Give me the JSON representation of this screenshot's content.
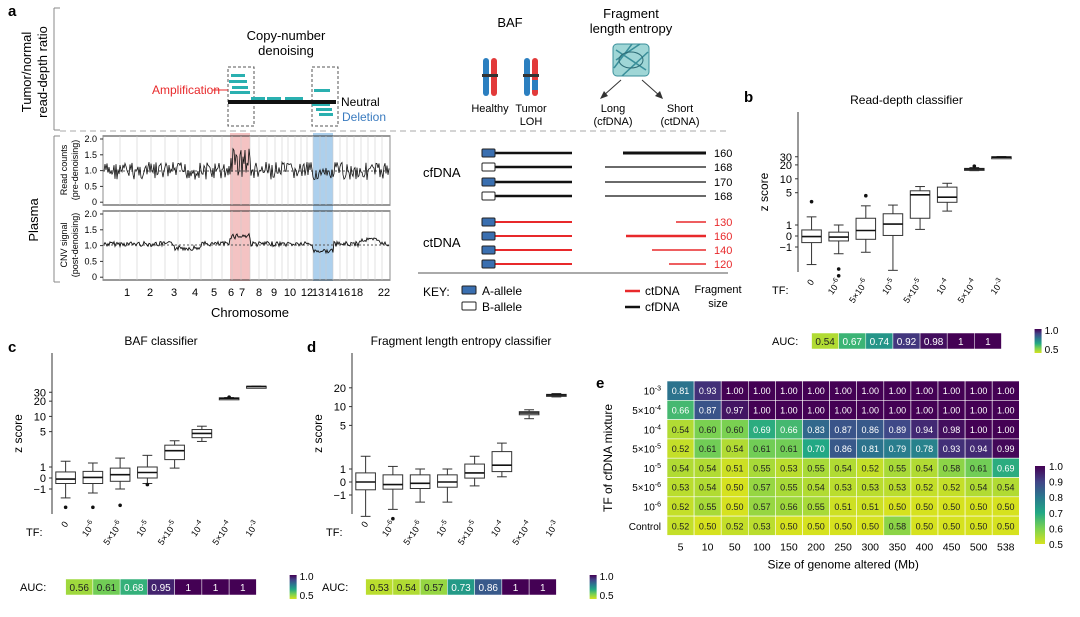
{
  "panel_a": {
    "label": "a",
    "ylabel_top_1": "Tumor/normal",
    "ylabel_top_2": "read-depth ratio",
    "ylabel_plasma": "Plasma",
    "cn_title_1": "Copy-number",
    "cn_title_2": "denoising",
    "amplification": "Amplification",
    "neutral": "Neutral",
    "deletion": "Deletion",
    "track1_ylabel_1": "Read counts",
    "track1_ylabel_2": "(pre-denoising)",
    "track2_ylabel_1": "CNV signal",
    "track2_ylabel_2": "(post-denoising)",
    "track1_ticks": [
      "2.0",
      "1.5",
      "1.0",
      "0.5",
      "0"
    ],
    "track2_ticks": [
      "2.0",
      "1.5",
      "1.0",
      "0.5",
      "0"
    ],
    "chromosome_ticks": [
      "1",
      "2",
      "3",
      "4",
      "5",
      "6",
      "7",
      "8",
      "9",
      "10",
      "12",
      "13",
      "14",
      "16",
      "18",
      "22"
    ],
    "xlabel": "Chromosome",
    "baf_title": "BAF",
    "healthy": "Healthy",
    "tumor_loh_1": "Tumor",
    "tumor_loh_2": "LOH",
    "fle_title_1": "Fragment",
    "fle_title_2": "length entropy",
    "long_1": "Long",
    "long_2": "(cfDNA)",
    "short_1": "Short",
    "short_2": "(ctDNA)",
    "cfdna_label": "cfDNA",
    "ctdna_label": "ctDNA",
    "cfdna_sizes": [
      "160",
      "168",
      "170",
      "168"
    ],
    "ctdna_sizes": [
      "130",
      "160",
      "140",
      "120"
    ],
    "key_label": "KEY:",
    "key_a_allele": "A-allele",
    "key_b_allele": "B-allele",
    "key_ctdna": "ctDNA",
    "key_cfdna": "cfDNA",
    "key_fragment_1": "Fragment",
    "key_fragment_2": "size"
  },
  "colors": {
    "teal": "#2ab0b0",
    "amp_shade": "#f2b8b8",
    "del_shade": "#9fc8ea",
    "red": "#e8292b",
    "blue_allele": "#3a6fb0",
    "amp_text": "#e8292b",
    "del_text": "#3a7bbf"
  },
  "chart_data": [
    {
      "panel": "b",
      "type": "box",
      "title": "Read-depth classifier",
      "ylabel": "z score",
      "xlabel": "TF:",
      "categories": [
        "0",
        "10^-6",
        "5×10^-6",
        "10^-5",
        "5×10^-5",
        "10^-4",
        "5×10^-4",
        "10^-3"
      ],
      "ytick_labels": [
        "30",
        "20",
        "10",
        "5",
        "1",
        "0",
        "−1"
      ],
      "boxes": [
        {
          "q1": -0.6,
          "med": -0.05,
          "q3": 0.55,
          "lo": -2.4,
          "hi": 1.5,
          "outliers": [
            3.2
          ]
        },
        {
          "q1": -0.45,
          "med": -0.1,
          "q3": 0.35,
          "lo": -1.4,
          "hi": 1.0,
          "outliers": [
            -3.0,
            -4.2
          ]
        },
        {
          "q1": -0.3,
          "med": 0.5,
          "q3": 1.4,
          "lo": -1.3,
          "hi": 2.6,
          "outliers": [
            4.3
          ]
        },
        {
          "q1": 0.05,
          "med": 1.05,
          "q3": 1.75,
          "lo": -3.2,
          "hi": 2.7,
          "outliers": []
        },
        {
          "q1": 1.4,
          "med": 4.5,
          "q3": 5.5,
          "lo": 0.6,
          "hi": 6.8,
          "outliers": []
        },
        {
          "q1": 3.1,
          "med": 4.0,
          "q3": 6.6,
          "lo": 2.0,
          "hi": 8.0,
          "outliers": []
        },
        {
          "q1": 15.6,
          "med": 16.2,
          "q3": 16.8,
          "lo": 15.0,
          "hi": 17.5,
          "outliers": [
            18.8
          ]
        },
        {
          "q1": 28.6,
          "med": 29.3,
          "q3": 30.0,
          "lo": 28.2,
          "hi": 30.4,
          "outliers": []
        }
      ],
      "auc_label": "AUC:",
      "auc": [
        "0.54",
        "0.67",
        "0.74",
        "0.92",
        "0.98",
        "1",
        "1"
      ],
      "auc_values": [
        0.54,
        0.67,
        0.74,
        0.92,
        0.98,
        1,
        1
      ],
      "colorbar_ticks": [
        "1.0",
        "0.5"
      ]
    },
    {
      "panel": "c",
      "type": "box",
      "title": "BAF classifier",
      "ylabel": "z score",
      "xlabel": "TF:",
      "categories": [
        "0",
        "10^-6",
        "5×10^-6",
        "10^-5",
        "5×10^-5",
        "10^-4",
        "5×10^-4",
        "10^-3"
      ],
      "ytick_labels": [
        "30",
        "20",
        "10",
        "5",
        "1",
        "0",
        "−1"
      ],
      "boxes": [
        {
          "q1": -0.5,
          "med": -0.1,
          "q3": 0.55,
          "lo": -1.5,
          "hi": 1.3,
          "outliers": [
            -2.3
          ]
        },
        {
          "q1": -0.5,
          "med": 0.05,
          "q3": 0.6,
          "lo": -1.2,
          "hi": 1.2,
          "outliers": [
            -2.3
          ]
        },
        {
          "q1": -0.3,
          "med": 0.3,
          "q3": 0.9,
          "lo": -1.0,
          "hi": 1.5,
          "outliers": [
            -2.1
          ]
        },
        {
          "q1": 0.0,
          "med": 0.5,
          "q3": 1.0,
          "lo": -0.5,
          "hi": 1.7,
          "outliers": [
            -0.6
          ]
        },
        {
          "q1": 1.4,
          "med": 2.1,
          "q3": 2.7,
          "lo": 0.9,
          "hi": 3.3,
          "outliers": []
        },
        {
          "q1": 3.8,
          "med": 4.6,
          "q3": 5.5,
          "lo": 3.2,
          "hi": 6.4,
          "outliers": []
        },
        {
          "q1": 22.3,
          "med": 22.8,
          "q3": 23.3,
          "lo": 22.0,
          "hi": 23.6,
          "outliers": [
            24.0
          ]
        },
        {
          "q1": 38.6,
          "med": 39.0,
          "q3": 39.4,
          "lo": 38.4,
          "hi": 39.6,
          "outliers": []
        }
      ],
      "auc_label": "AUC:",
      "auc": [
        "0.56",
        "0.61",
        "0.68",
        "0.95",
        "1",
        "1",
        "1"
      ],
      "auc_values": [
        0.56,
        0.61,
        0.68,
        0.95,
        1,
        1,
        1
      ],
      "colorbar_ticks": [
        "1.0",
        "0.5"
      ]
    },
    {
      "panel": "d",
      "type": "box",
      "title": "Fragment length entropy classifier",
      "ylabel": "z score",
      "xlabel": "TF:",
      "categories": [
        "0",
        "10^-6",
        "5×10^-6",
        "10^-5",
        "5×10^-5",
        "10^-4",
        "5×10^-4",
        "10^-3"
      ],
      "ytick_labels": [
        "20",
        "10",
        "5",
        "1",
        "0",
        "−1"
      ],
      "boxes": [
        {
          "q1": -0.6,
          "med": 0.0,
          "q3": 0.7,
          "lo": -2.2,
          "hi": 1.6,
          "outliers": []
        },
        {
          "q1": -0.55,
          "med": -0.2,
          "q3": 0.55,
          "lo": -1.7,
          "hi": 1.1,
          "outliers": [
            -2.4
          ]
        },
        {
          "q1": -0.5,
          "med": -0.1,
          "q3": 0.55,
          "lo": -1.3,
          "hi": 1.0,
          "outliers": []
        },
        {
          "q1": -0.4,
          "med": 0.0,
          "q3": 0.55,
          "lo": -1.3,
          "hi": 1.0,
          "outliers": []
        },
        {
          "q1": 0.3,
          "med": 0.7,
          "q3": 1.2,
          "lo": -0.3,
          "hi": 1.6,
          "outliers": []
        },
        {
          "q1": 0.8,
          "med": 1.15,
          "q3": 1.9,
          "lo": 0.4,
          "hi": 2.6,
          "outliers": []
        },
        {
          "q1": 7.4,
          "med": 7.9,
          "q3": 8.3,
          "lo": 6.4,
          "hi": 8.9,
          "outliers": []
        },
        {
          "q1": 14.9,
          "med": 15.3,
          "q3": 15.7,
          "lo": 14.3,
          "hi": 16.2,
          "outliers": []
        }
      ],
      "auc_label": "AUC:",
      "auc": [
        "0.53",
        "0.54",
        "0.57",
        "0.73",
        "0.86",
        "1",
        "1"
      ],
      "auc_values": [
        0.53,
        0.54,
        0.57,
        0.73,
        0.86,
        1,
        1
      ],
      "colorbar_ticks": [
        "1.0",
        "0.5"
      ]
    },
    {
      "panel": "e",
      "type": "heatmap",
      "xlabel": "Size of genome altered (Mb)",
      "ylabel": "TF of cfDNA mixture",
      "x": [
        "5",
        "10",
        "50",
        "100",
        "150",
        "200",
        "250",
        "300",
        "350",
        "400",
        "450",
        "500",
        "538"
      ],
      "y": [
        "10^-3",
        "5×10^-4",
        "10^-4",
        "5×10^-5",
        "10^-5",
        "5×10^-6",
        "10^-6",
        "Control"
      ],
      "values": [
        [
          0.81,
          0.93,
          1.0,
          1.0,
          1.0,
          1.0,
          1.0,
          1.0,
          1.0,
          1.0,
          1.0,
          1.0,
          1.0
        ],
        [
          0.66,
          0.87,
          0.97,
          1.0,
          1.0,
          1.0,
          1.0,
          1.0,
          1.0,
          1.0,
          1.0,
          1.0,
          1.0
        ],
        [
          0.54,
          0.6,
          0.6,
          0.69,
          0.66,
          0.83,
          0.87,
          0.86,
          0.89,
          0.94,
          0.98,
          1.0,
          1.0
        ],
        [
          0.52,
          0.61,
          0.54,
          0.61,
          0.61,
          0.7,
          0.86,
          0.81,
          0.79,
          0.78,
          0.93,
          0.94,
          0.99
        ],
        [
          0.54,
          0.54,
          0.51,
          0.55,
          0.53,
          0.55,
          0.54,
          0.52,
          0.55,
          0.54,
          0.58,
          0.61,
          0.69
        ],
        [
          0.53,
          0.54,
          0.5,
          0.57,
          0.55,
          0.54,
          0.53,
          0.53,
          0.53,
          0.52,
          0.52,
          0.54,
          0.54
        ],
        [
          0.52,
          0.55,
          0.5,
          0.57,
          0.56,
          0.55,
          0.51,
          0.51,
          0.5,
          0.5,
          0.5,
          0.5,
          0.5
        ],
        [
          0.52,
          0.5,
          0.52,
          0.53,
          0.5,
          0.5,
          0.5,
          0.5,
          0.58,
          0.5,
          0.5,
          0.5,
          0.5
        ]
      ],
      "value_labels": [
        [
          "0.81",
          "0.93",
          "1.00",
          "1.00",
          "1.00",
          "1.00",
          "1.00",
          "1.00",
          "1.00",
          "1.00",
          "1.00",
          "1.00",
          "1.00"
        ],
        [
          "0.66",
          "0.87",
          "0.97",
          "1.00",
          "1.00",
          "1.00",
          "1.00",
          "1.00",
          "1.00",
          "1.00",
          "1.00",
          "1.00",
          "1.00"
        ],
        [
          "0.54",
          "0.60",
          "0.60",
          "0.69",
          "0.66",
          "0.83",
          "0.87",
          "0.86",
          "0.89",
          "0.94",
          "0.98",
          "1.00",
          "1.00"
        ],
        [
          "0.52",
          "0.61",
          "0.54",
          "0.61",
          "0.61",
          "0.70",
          "0.86",
          "0.81",
          "0.79",
          "0.78",
          "0.93",
          "0.94",
          "0.99"
        ],
        [
          "0.54",
          "0.54",
          "0.51",
          "0.55",
          "0.53",
          "0.55",
          "0.54",
          "0.52",
          "0.55",
          "0.54",
          "0.58",
          "0.61",
          "0.69"
        ],
        [
          "0.53",
          "0.54",
          "0.50",
          "0.57",
          "0.55",
          "0.54",
          "0.53",
          "0.53",
          "0.53",
          "0.52",
          "0.52",
          "0.54",
          "0.54"
        ],
        [
          "0.52",
          "0.55",
          "0.50",
          "0.57",
          "0.56",
          "0.55",
          "0.51",
          "0.51",
          "0.50",
          "0.50",
          "0.50",
          "0.50",
          "0.50"
        ],
        [
          "0.52",
          "0.50",
          "0.52",
          "0.53",
          "0.50",
          "0.50",
          "0.50",
          "0.50",
          "0.58",
          "0.50",
          "0.50",
          "0.50",
          "0.50"
        ]
      ],
      "colorbar_ticks": [
        "1.0",
        "0.9",
        "0.8",
        "0.7",
        "0.6",
        "0.5"
      ]
    }
  ]
}
